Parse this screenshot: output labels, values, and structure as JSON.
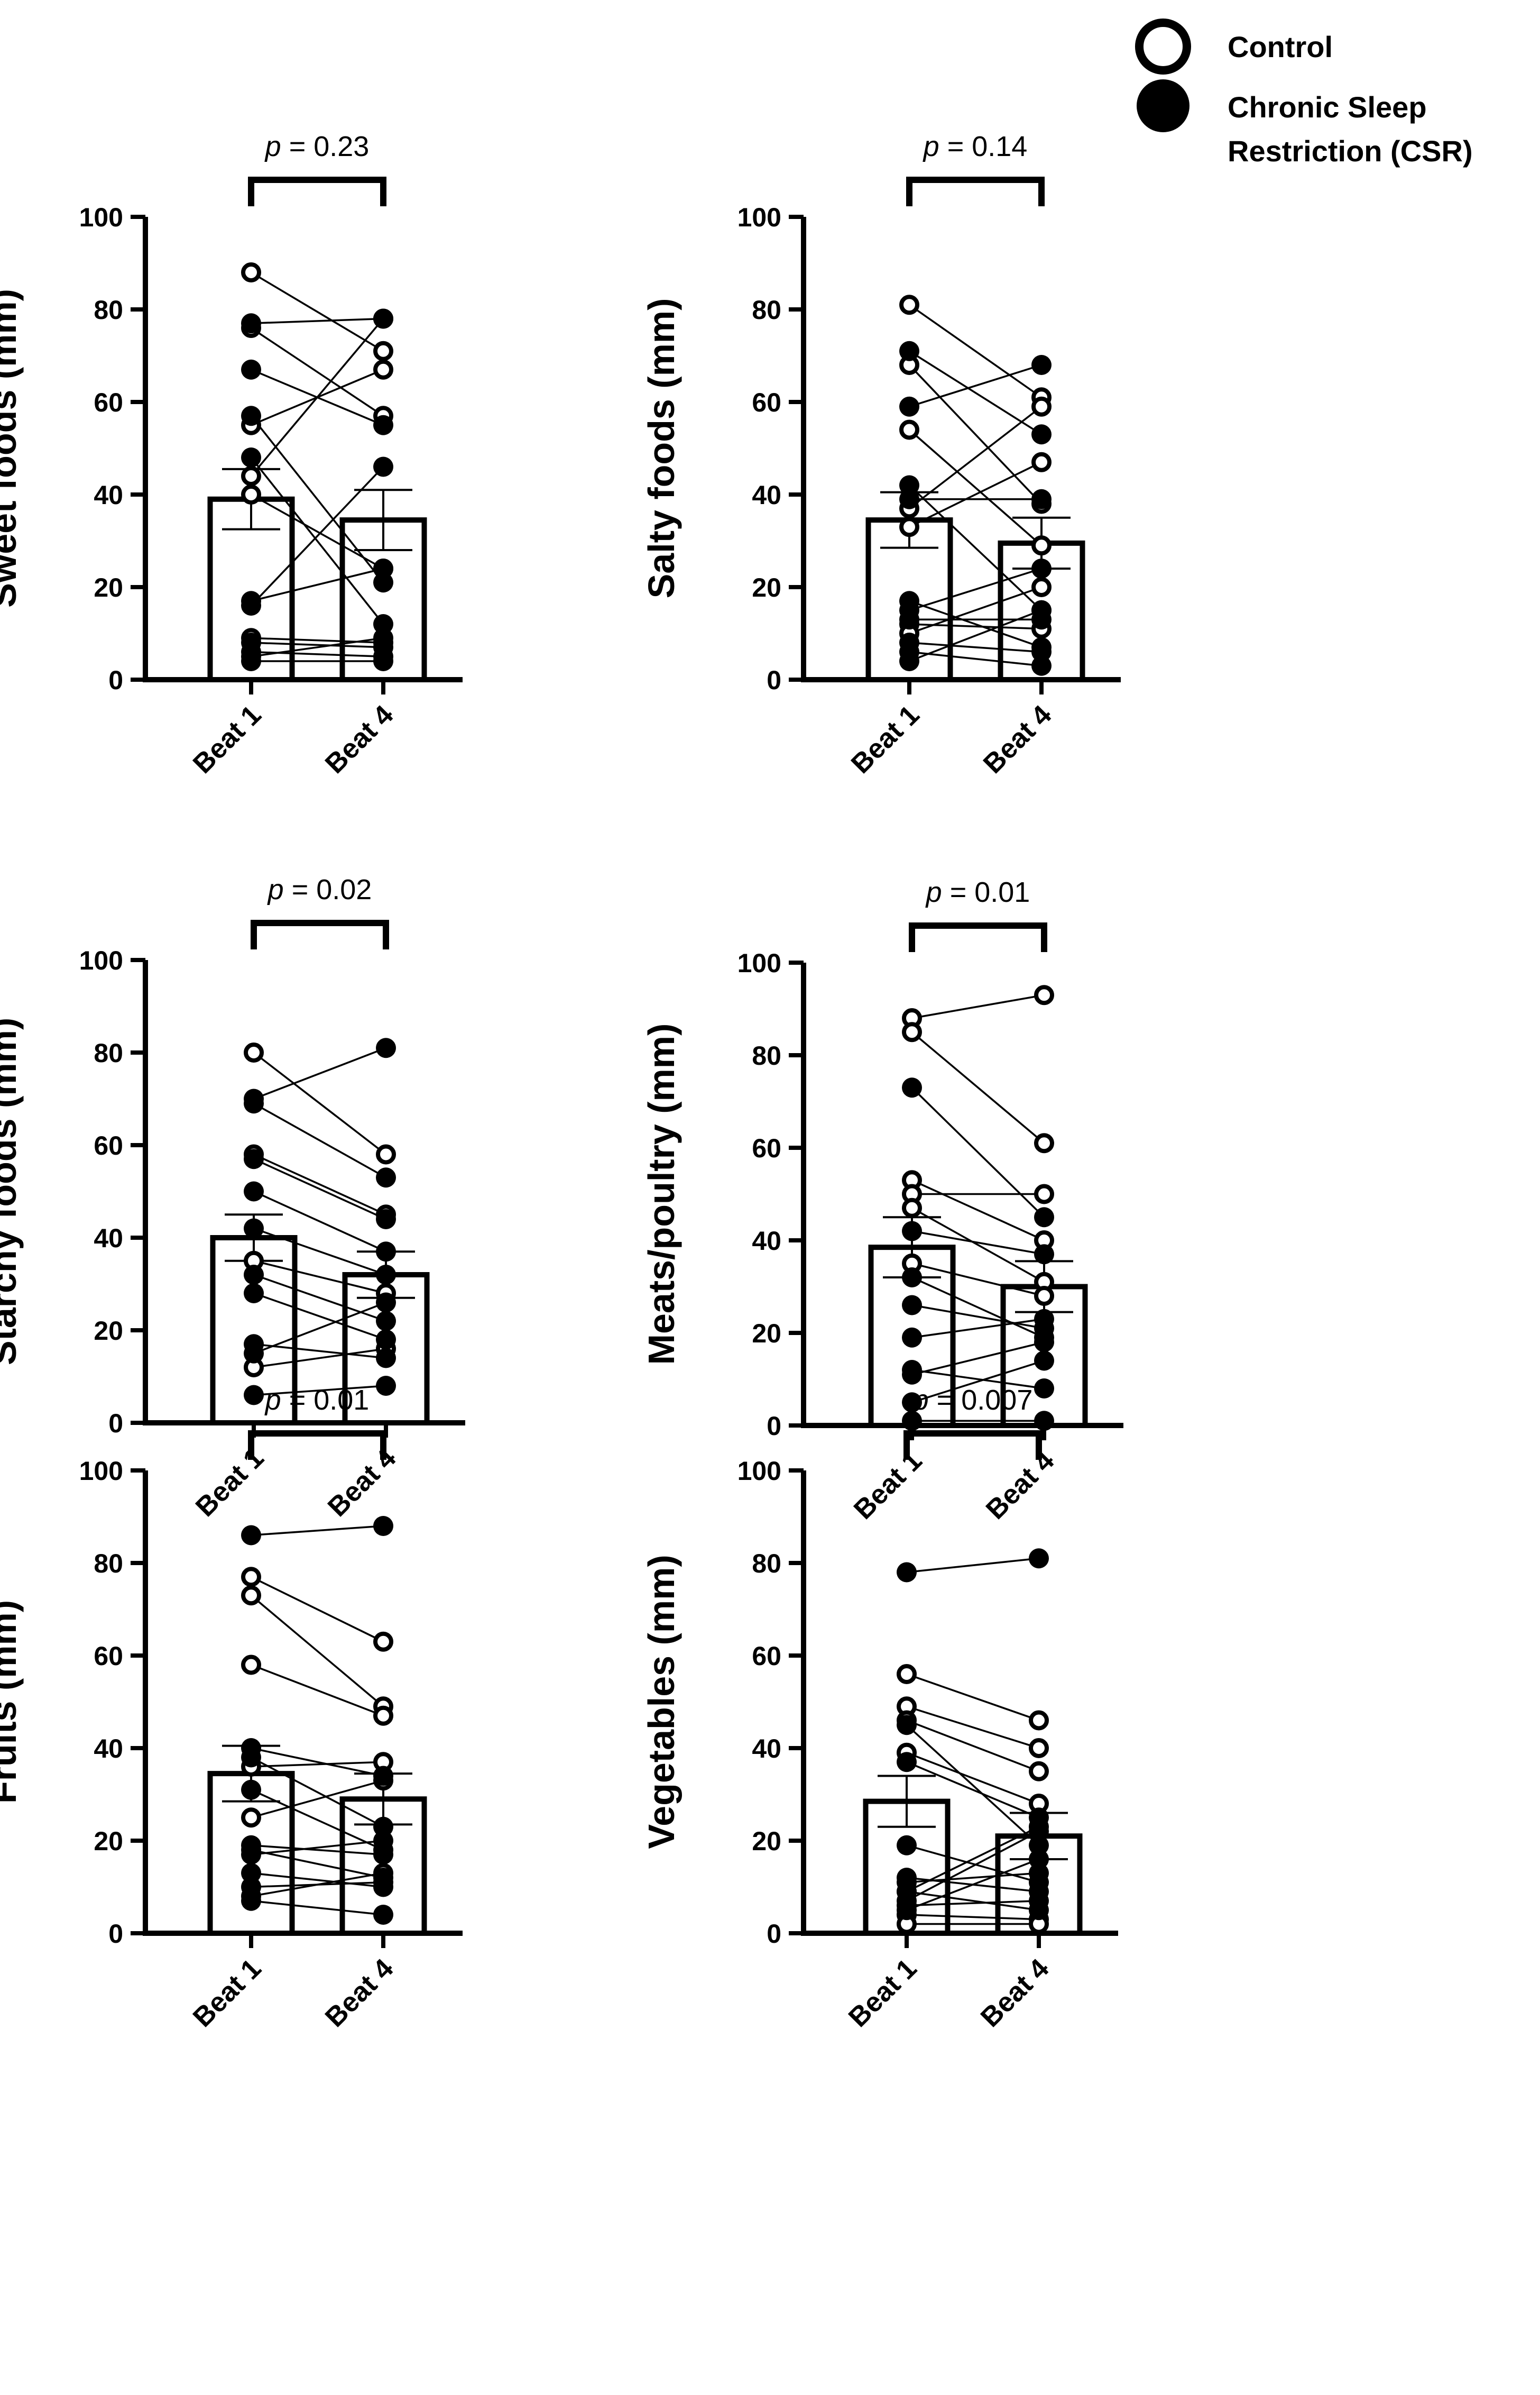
{
  "legend": {
    "items": [
      {
        "label": "Control",
        "style": "open"
      },
      {
        "label": "Chronic Sleep",
        "label2": "Restriction (CSR)",
        "style": "filled"
      }
    ]
  },
  "colors": {
    "ink": "#000000",
    "bar_fill": "#ffffff",
    "open_fill": "#ffffff"
  },
  "chart_data": [
    {
      "type": "bar",
      "title": "",
      "ylabel": "Sweet foods (mm)",
      "categories": [
        "Beat 1",
        "Beat 4"
      ],
      "ylim": [
        0,
        100
      ],
      "yticks": [
        0,
        20,
        40,
        60,
        80,
        100
      ],
      "bar_means": [
        39,
        34.5
      ],
      "bar_sem": [
        6.5,
        6.5
      ],
      "p_label": "p",
      "p_value_text": " = 0.23",
      "series": [
        {
          "name": "Control",
          "pairs": [
            [
              88,
              71
            ],
            [
              76,
              57
            ],
            [
              55,
              67
            ],
            [
              44,
              78
            ],
            [
              40,
              24
            ],
            [
              9,
              8
            ]
          ]
        },
        {
          "name": "Chronic Sleep Restriction (CSR)",
          "pairs": [
            [
              77,
              78
            ],
            [
              67,
              55
            ],
            [
              57,
              21
            ],
            [
              48,
              12
            ],
            [
              17,
              24
            ],
            [
              16,
              46
            ],
            [
              8,
              7
            ],
            [
              6,
              5
            ],
            [
              5,
              9
            ],
            [
              4,
              4
            ]
          ]
        }
      ]
    },
    {
      "type": "bar",
      "title": "",
      "ylabel": "Salty foods (mm)",
      "categories": [
        "Beat 1",
        "Beat 4"
      ],
      "ylim": [
        0,
        100
      ],
      "yticks": [
        0,
        20,
        40,
        60,
        80,
        100
      ],
      "bar_means": [
        34.5,
        29.5
      ],
      "bar_sem": [
        6,
        5.5
      ],
      "p_label": "p",
      "p_value_text": " = 0.14",
      "series": [
        {
          "name": "Control",
          "pairs": [
            [
              81,
              61
            ],
            [
              68,
              38
            ],
            [
              54,
              29
            ],
            [
              37,
              59
            ],
            [
              33,
              47
            ],
            [
              12,
              11
            ],
            [
              10,
              20
            ]
          ]
        },
        {
          "name": "Chronic Sleep Restriction (CSR)",
          "pairs": [
            [
              71,
              53
            ],
            [
              59,
              68
            ],
            [
              42,
              15
            ],
            [
              39,
              39
            ],
            [
              17,
              7
            ],
            [
              15,
              24
            ],
            [
              13,
              13
            ],
            [
              8,
              6
            ],
            [
              6,
              3
            ],
            [
              4,
              15
            ]
          ]
        }
      ]
    },
    {
      "type": "bar",
      "title": "",
      "ylabel": "Starchy foods (mm)",
      "categories": [
        "Beat 1",
        "Beat 4"
      ],
      "ylim": [
        0,
        100
      ],
      "yticks": [
        0,
        20,
        40,
        60,
        80,
        100
      ],
      "bar_means": [
        40,
        32
      ],
      "bar_sem": [
        5,
        5
      ],
      "p_label": "p",
      "p_value_text": " = 0.02",
      "series": [
        {
          "name": "Control",
          "pairs": [
            [
              80,
              58
            ],
            [
              58,
              45
            ],
            [
              35,
              28
            ],
            [
              12,
              16
            ]
          ]
        },
        {
          "name": "Chronic Sleep Restriction (CSR)",
          "pairs": [
            [
              70,
              81
            ],
            [
              69,
              53
            ],
            [
              57,
              44
            ],
            [
              50,
              37
            ],
            [
              42,
              32
            ],
            [
              32,
              22
            ],
            [
              28,
              18
            ],
            [
              17,
              14
            ],
            [
              15,
              26
            ],
            [
              6,
              8
            ]
          ]
        }
      ]
    },
    {
      "type": "bar",
      "title": "",
      "ylabel": "Meats/poultry (mm)",
      "categories": [
        "Beat 1",
        "Beat 4"
      ],
      "ylim": [
        0,
        100
      ],
      "yticks": [
        0,
        20,
        40,
        60,
        80,
        100
      ],
      "bar_means": [
        38.5,
        30
      ],
      "bar_sem": [
        6.5,
        5.5
      ],
      "p_label": "p",
      "p_value_text": " = 0.01",
      "series": [
        {
          "name": "Control",
          "pairs": [
            [
              88,
              93
            ],
            [
              85,
              61
            ],
            [
              53,
              40
            ],
            [
              50,
              50
            ],
            [
              47,
              31
            ],
            [
              35,
              28
            ]
          ]
        },
        {
          "name": "Chronic Sleep Restriction (CSR)",
          "pairs": [
            [
              73,
              45
            ],
            [
              42,
              37
            ],
            [
              32,
              19
            ],
            [
              26,
              21
            ],
            [
              19,
              23
            ],
            [
              12,
              8
            ],
            [
              11,
              18
            ],
            [
              5,
              14
            ],
            [
              1,
              1
            ]
          ]
        }
      ]
    },
    {
      "type": "bar",
      "title": "",
      "ylabel": "Fruits (mm)",
      "categories": [
        "Beat 1",
        "Beat 4"
      ],
      "ylim": [
        0,
        100
      ],
      "yticks": [
        0,
        20,
        40,
        60,
        80,
        100
      ],
      "bar_means": [
        34.5,
        29
      ],
      "bar_sem": [
        6,
        5.5
      ],
      "p_label": "p",
      "p_value_text": " = 0.01",
      "series": [
        {
          "name": "Control",
          "pairs": [
            [
              77,
              63
            ],
            [
              73,
              49
            ],
            [
              58,
              47
            ],
            [
              36,
              37
            ],
            [
              25,
              33
            ],
            [
              8,
              13
            ]
          ]
        },
        {
          "name": "Chronic Sleep Restriction (CSR)",
          "pairs": [
            [
              86,
              88
            ],
            [
              40,
              34
            ],
            [
              38,
              23
            ],
            [
              31,
              18
            ],
            [
              19,
              17
            ],
            [
              18,
              12
            ],
            [
              17,
              20
            ],
            [
              13,
              10
            ],
            [
              10,
              11
            ],
            [
              7,
              4
            ]
          ]
        }
      ]
    },
    {
      "type": "bar",
      "title": "",
      "ylabel": "Vegetables (mm)",
      "categories": [
        "Beat 1",
        "Beat 4"
      ],
      "ylim": [
        0,
        100
      ],
      "yticks": [
        0,
        20,
        40,
        60,
        80,
        100
      ],
      "bar_means": [
        28.5,
        21
      ],
      "bar_sem": [
        5.5,
        5
      ],
      "p_label": "p",
      "p_value_text": " = 0.007",
      "series": [
        {
          "name": "Control",
          "pairs": [
            [
              56,
              46
            ],
            [
              49,
              40
            ],
            [
              46,
              35
            ],
            [
              39,
              28
            ],
            [
              9,
              23
            ],
            [
              4,
              3
            ],
            [
              2,
              2
            ]
          ]
        },
        {
          "name": "Chronic Sleep Restriction (CSR)",
          "pairs": [
            [
              78,
              81
            ],
            [
              45,
              19
            ],
            [
              37,
              25
            ],
            [
              19,
              11
            ],
            [
              12,
              9
            ],
            [
              11,
              13
            ],
            [
              9,
              5
            ],
            [
              7,
              22
            ],
            [
              6,
              7
            ],
            [
              5,
              16
            ]
          ]
        }
      ]
    }
  ]
}
